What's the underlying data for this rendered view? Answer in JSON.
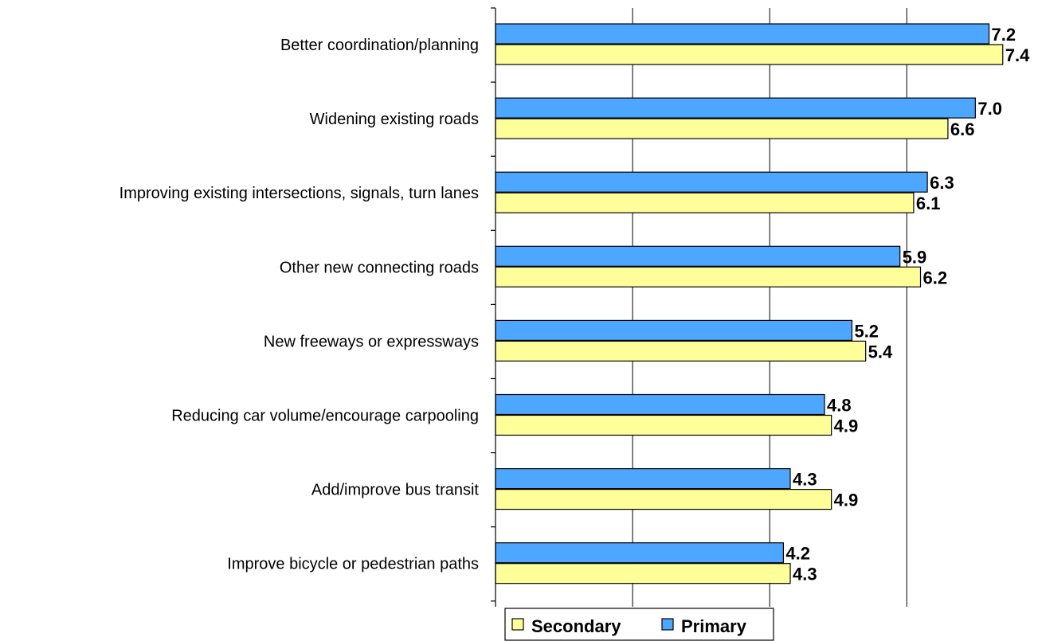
{
  "chart_data": {
    "type": "bar",
    "orientation": "horizontal",
    "categories": [
      "Better coordination/planning",
      "Widening existing roads",
      "Improving existing intersections, signals, turn lanes",
      "Other new connecting roads",
      "New freeways or expressways",
      "Reducing car volume/encourage carpooling",
      "Add/improve bus transit",
      "Improve bicycle or pedestrian paths"
    ],
    "series": [
      {
        "name": "Primary",
        "color": "#4da6ff",
        "values": [
          7.2,
          7.0,
          6.3,
          5.9,
          5.2,
          4.8,
          4.3,
          4.2
        ],
        "labels": [
          "7.2",
          "7.0",
          "6.3",
          "5.9",
          "5.2",
          "4.8",
          "4.3",
          "4.2"
        ]
      },
      {
        "name": "Secondary",
        "color": "#ffff99",
        "values": [
          7.4,
          6.6,
          6.1,
          6.2,
          5.4,
          4.9,
          4.9,
          4.3
        ],
        "labels": [
          "7.4",
          "6.6",
          "6.1",
          "6.2",
          "5.4",
          "4.9",
          "4.9",
          "4.3"
        ]
      }
    ],
    "xlim": [
      0,
      8
    ],
    "grid": true,
    "legend": {
      "position": "bottom",
      "order": [
        "Secondary",
        "Primary"
      ]
    }
  }
}
